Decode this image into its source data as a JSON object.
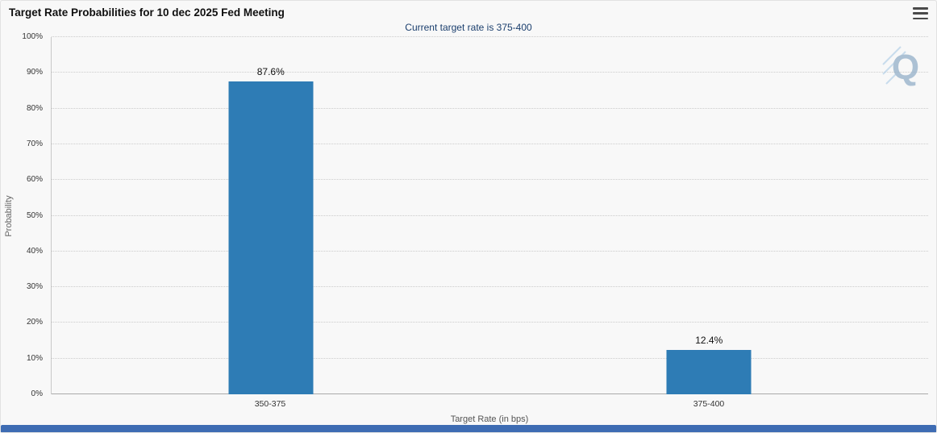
{
  "icons": {
    "menu": "hamburger-menu-icon",
    "watermark": "q-logo-watermark"
  },
  "colors": {
    "bar": "#2e7cb5",
    "subtitle": "#1a3e6d",
    "footer_bar": "#3e6cb3",
    "watermark_blue": "#a3c0d9"
  },
  "chart_data": {
    "type": "bar",
    "title": "Target Rate Probabilities for 10 dec 2025 Fed Meeting",
    "subtitle": "Current target rate is 375-400",
    "categories": [
      "350-375",
      "375-400"
    ],
    "values": [
      87.6,
      12.4
    ],
    "value_labels": [
      "87.6%",
      "12.4%"
    ],
    "xlabel": "Target Rate (in bps)",
    "ylabel": "Probability",
    "ylim": [
      0,
      100
    ],
    "ytick_step": 10,
    "ytick_suffix": "%",
    "grid": "dotted-horizontal",
    "legend": "none",
    "watermark_letter": "Q"
  }
}
